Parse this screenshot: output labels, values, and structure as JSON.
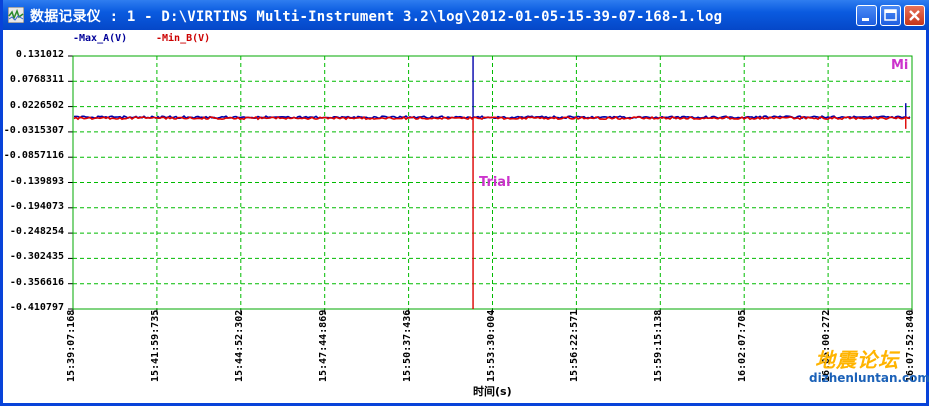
{
  "window": {
    "title": "数据记录仪 : 1 - D:\\VIRTINS Multi-Instrument 3.2\\log\\2012-01-05-15-39-07-168-1.log",
    "buttons": {
      "minimize": "minimize-icon",
      "maximize": "maximize-icon",
      "close": "close-icon"
    }
  },
  "legend": [
    {
      "label": "-Max_A(V)",
      "color": "#000099"
    },
    {
      "label": "-Min_B(V)",
      "color": "#cc0000"
    }
  ],
  "annotations": {
    "mi": "Mi",
    "trial": "Trial"
  },
  "x_axis_title": "时间(s)",
  "watermark": {
    "logo_text": "地震论坛",
    "url": "dizhenluntan.com"
  },
  "colors": {
    "grid": "#00bb00",
    "frame": "#00aa00",
    "series_a": "#0000aa",
    "series_b": "#dd0000",
    "annotation": "#cc33cc"
  },
  "chart_data": {
    "type": "line",
    "title": "",
    "xlabel": "时间(s)",
    "ylabel": "",
    "ylim": [
      -0.410797,
      0.131012
    ],
    "y_ticks": [
      "0.131012",
      "0.0768311",
      "0.0226502",
      "-0.0315307",
      "-0.0857116",
      "-0.139893",
      "-0.194073",
      "-0.248254",
      "-0.302435",
      "-0.356616",
      "-0.410797"
    ],
    "x_ticks": [
      "15:39:07:168",
      "15:41:59:735",
      "15:44:52:302",
      "15:47:44:869",
      "15:50:37:436",
      "15:53:30:004",
      "15:56:22:571",
      "15:59:15:138",
      "16:02:07:705",
      "16:05:00:272",
      "16:07:52:840"
    ],
    "series": [
      {
        "name": "Max_A(V)",
        "baseline": 0.0,
        "spikes": [
          {
            "x": "15:52:50",
            "value": 0.131012
          },
          {
            "x": "16:07:40",
            "value": 0.03
          }
        ]
      },
      {
        "name": "Min_B(V)",
        "baseline": -0.002,
        "spikes": [
          {
            "x": "15:52:50",
            "value": -0.410797
          },
          {
            "x": "16:07:40",
            "value": -0.025
          }
        ]
      }
    ]
  }
}
